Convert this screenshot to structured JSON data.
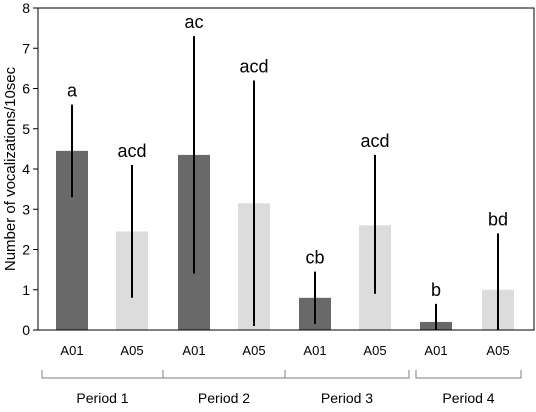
{
  "chart_data": {
    "type": "bar",
    "ylabel": "Number of vocalizations/10sec",
    "ylim": [
      0,
      8
    ],
    "yticks": [
      0,
      1,
      2,
      3,
      4,
      5,
      6,
      7,
      8
    ],
    "grid": false,
    "groups": [
      "Period 1",
      "Period 2",
      "Period 3",
      "Period 4"
    ],
    "categories": [
      "A01",
      "A05",
      "A01",
      "A05",
      "A01",
      "A05",
      "A01",
      "A05"
    ],
    "colors": {
      "A01": "#696969",
      "A05": "#dcdcdc"
    },
    "bars": [
      {
        "group": "Period 1",
        "category": "A01",
        "value": 4.45,
        "err_low": 3.3,
        "err_high": 5.6,
        "label": "a"
      },
      {
        "group": "Period 1",
        "category": "A05",
        "value": 2.45,
        "err_low": 0.8,
        "err_high": 4.1,
        "label": "acd"
      },
      {
        "group": "Period 2",
        "category": "A01",
        "value": 4.35,
        "err_low": 1.4,
        "err_high": 7.3,
        "label": "ac"
      },
      {
        "group": "Period 2",
        "category": "A05",
        "value": 3.15,
        "err_low": 0.1,
        "err_high": 6.2,
        "label": "acd"
      },
      {
        "group": "Period 3",
        "category": "A01",
        "value": 0.8,
        "err_low": 0.15,
        "err_high": 1.45,
        "label": "cb"
      },
      {
        "group": "Period 3",
        "category": "A05",
        "value": 2.6,
        "err_low": 0.9,
        "err_high": 4.35,
        "label": "acd"
      },
      {
        "group": "Period 4",
        "category": "A01",
        "value": 0.2,
        "err_low": 0.0,
        "err_high": 0.65,
        "label": "b"
      },
      {
        "group": "Period 4",
        "category": "A05",
        "value": 1.0,
        "err_low": 0.0,
        "err_high": 2.4,
        "label": "bd"
      }
    ]
  }
}
